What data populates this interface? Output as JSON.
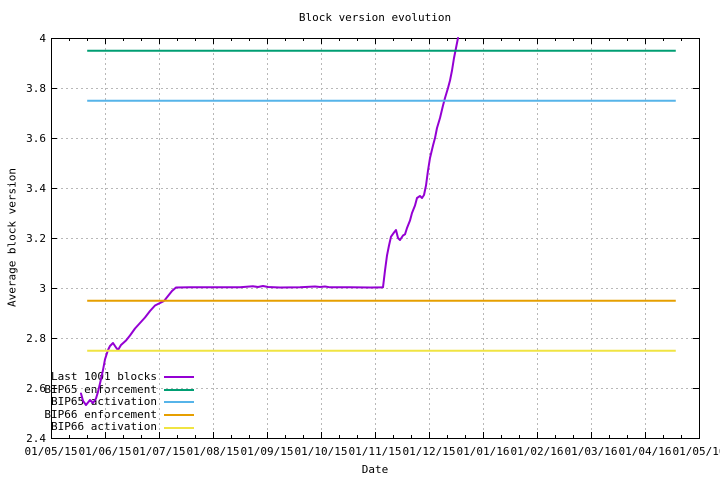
{
  "chart_data": {
    "type": "line",
    "title": "Block version evolution",
    "xlabel": "Date",
    "ylabel": "Average block version",
    "xlim": [
      0,
      12
    ],
    "ylim": [
      2.4,
      4.0
    ],
    "x_tick_labels": [
      "01/05/15",
      "01/06/15",
      "01/07/15",
      "01/08/15",
      "01/09/15",
      "01/10/15",
      "01/11/15",
      "01/12/15",
      "01/01/16",
      "01/02/16",
      "01/03/16",
      "01/04/16",
      "01/05/16"
    ],
    "x_minor_ticks_per_interval": 2,
    "y_tick_values": [
      2.4,
      2.6,
      2.8,
      3.0,
      3.2,
      3.4,
      3.6,
      3.8,
      4.0
    ],
    "y_tick_labels": [
      "2.4",
      "2.6",
      "2.8",
      "3",
      "3.2",
      "3.4",
      "3.6",
      "3.8",
      "4"
    ],
    "grid": true,
    "legend_position": "bottom-left-inside",
    "colors": {
      "background": "#ffffff",
      "border": "#000000",
      "grid": "#b8b8b8"
    },
    "series": [
      {
        "name": "Last 1001 blocks",
        "color": "#9400D3",
        "style": "line",
        "points": [
          [
            0.556,
            2.578
          ],
          [
            0.593,
            2.549
          ],
          [
            0.648,
            2.532
          ],
          [
            0.722,
            2.552
          ],
          [
            0.778,
            2.54
          ],
          [
            0.833,
            2.558
          ],
          [
            0.87,
            2.585
          ],
          [
            0.907,
            2.618
          ],
          [
            0.963,
            2.672
          ],
          [
            1.0,
            2.715
          ],
          [
            1.056,
            2.752
          ],
          [
            1.093,
            2.768
          ],
          [
            1.148,
            2.78
          ],
          [
            1.204,
            2.762
          ],
          [
            1.241,
            2.752
          ],
          [
            1.296,
            2.772
          ],
          [
            1.389,
            2.79
          ],
          [
            1.463,
            2.81
          ],
          [
            1.556,
            2.838
          ],
          [
            1.648,
            2.86
          ],
          [
            1.741,
            2.882
          ],
          [
            1.833,
            2.908
          ],
          [
            1.926,
            2.93
          ],
          [
            2.019,
            2.94
          ],
          [
            2.093,
            2.948
          ],
          [
            2.167,
            2.968
          ],
          [
            2.241,
            2.988
          ],
          [
            2.315,
            3.002
          ],
          [
            2.574,
            3.003
          ],
          [
            3.037,
            3.003
          ],
          [
            3.5,
            3.003
          ],
          [
            3.741,
            3.007
          ],
          [
            3.833,
            3.004
          ],
          [
            3.926,
            3.008
          ],
          [
            4.019,
            3.004
          ],
          [
            4.241,
            3.002
          ],
          [
            4.611,
            3.003
          ],
          [
            4.889,
            3.006
          ],
          [
            4.981,
            3.004
          ],
          [
            5.074,
            3.006
          ],
          [
            5.167,
            3.003
          ],
          [
            5.537,
            3.003
          ],
          [
            5.907,
            3.002
          ],
          [
            6.148,
            3.003
          ],
          [
            6.185,
            3.07
          ],
          [
            6.222,
            3.13
          ],
          [
            6.259,
            3.17
          ],
          [
            6.296,
            3.205
          ],
          [
            6.352,
            3.222
          ],
          [
            6.389,
            3.232
          ],
          [
            6.426,
            3.2
          ],
          [
            6.463,
            3.192
          ],
          [
            6.519,
            3.21
          ],
          [
            6.556,
            3.215
          ],
          [
            6.593,
            3.24
          ],
          [
            6.648,
            3.27
          ],
          [
            6.685,
            3.3
          ],
          [
            6.741,
            3.33
          ],
          [
            6.778,
            3.36
          ],
          [
            6.833,
            3.368
          ],
          [
            6.87,
            3.36
          ],
          [
            6.907,
            3.372
          ],
          [
            6.944,
            3.41
          ],
          [
            6.981,
            3.47
          ],
          [
            7.019,
            3.52
          ],
          [
            7.074,
            3.57
          ],
          [
            7.111,
            3.6
          ],
          [
            7.148,
            3.64
          ],
          [
            7.204,
            3.68
          ],
          [
            7.259,
            3.73
          ],
          [
            7.296,
            3.76
          ],
          [
            7.352,
            3.8
          ],
          [
            7.389,
            3.83
          ],
          [
            7.426,
            3.87
          ],
          [
            7.463,
            3.92
          ],
          [
            7.5,
            3.96
          ],
          [
            7.537,
            4.0
          ]
        ]
      },
      {
        "name": "BIP65 enforcement",
        "color": "#009E73",
        "style": "hline",
        "y": 3.949,
        "x_start": 0.67,
        "x_end": 11.57
      },
      {
        "name": "BIP65 activation",
        "color": "#56B4E9",
        "style": "hline",
        "y": 3.749,
        "x_start": 0.67,
        "x_end": 11.57
      },
      {
        "name": "BIP66 enforcement",
        "color": "#E69F00",
        "style": "hline",
        "y": 2.949,
        "x_start": 0.67,
        "x_end": 11.57
      },
      {
        "name": "BIP66 activation",
        "color": "#F0E442",
        "style": "hline",
        "y": 2.749,
        "x_start": 0.67,
        "x_end": 11.57
      }
    ]
  }
}
